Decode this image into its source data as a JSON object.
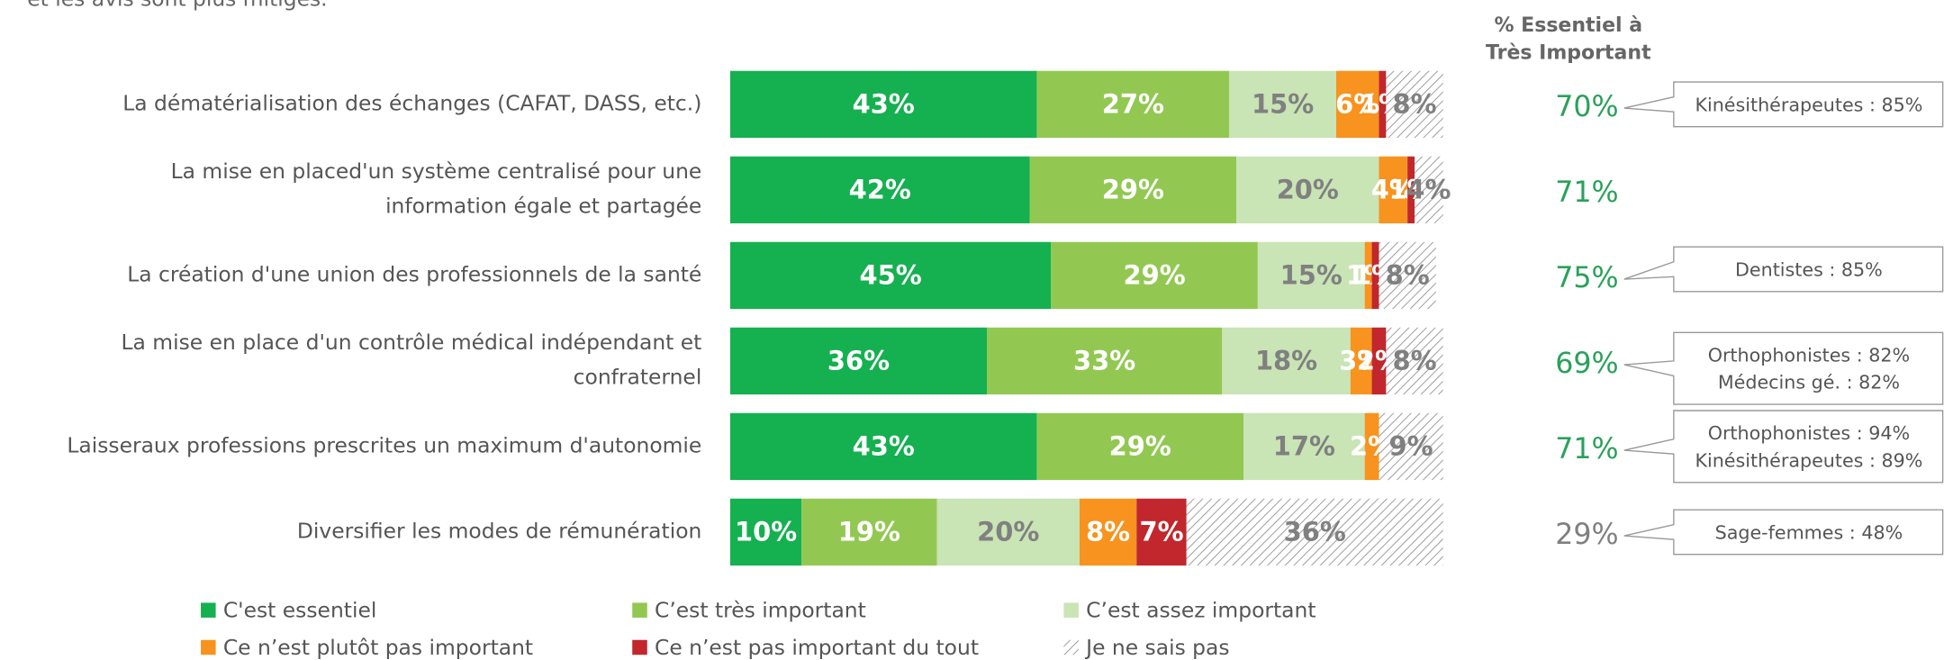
{
  "chart_data": {
    "type": "stacked-bar",
    "orientation": "horizontal",
    "subtitle": "et les avis sont plus mitigés.",
    "categories": [
      "La dématérialisation des échanges (CAFAT, DASS, etc.)",
      [
        "La mise en placed'un système centralisé pour une",
        "information égale et partagée"
      ],
      "La création d'une union des professionnels de la santé",
      [
        "La mise en place d'un contrôle médical indépendant et",
        "confraternel"
      ],
      "Laisseraux professions prescrites un maximum d'autonomie",
      "Diversifier les modes de rémunération"
    ],
    "xlim": [
      0,
      100
    ],
    "series": [
      {
        "name": "C'est essentiel",
        "color": "#15b050",
        "label_color": "#ffffff",
        "values": [
          43,
          42,
          45,
          36,
          43,
          10
        ],
        "value_labels": [
          "43%",
          "42%",
          "45%",
          "36%",
          "43%",
          "10%"
        ]
      },
      {
        "name": "C’est très important",
        "color": "#92c852",
        "label_color": "#ffffff",
        "values": [
          27,
          29,
          29,
          33,
          29,
          19
        ],
        "value_labels": [
          "27%",
          "29%",
          "29%",
          "33%",
          "29%",
          "19%"
        ]
      },
      {
        "name": "C’est assez important",
        "color": "#c9e4b5",
        "label_color": "#808080",
        "values": [
          15,
          20,
          15,
          18,
          17,
          20
        ],
        "value_labels": [
          "15%",
          "20%",
          "15%",
          "18%",
          "17%",
          "20%"
        ]
      },
      {
        "name": "Ce n’est plutôt pas important",
        "color": "#f7931e",
        "label_color": "#ffffff",
        "values": [
          6,
          4,
          1,
          3,
          2,
          8
        ],
        "value_labels": [
          "6%",
          "4%",
          "1%",
          "3%",
          "2%",
          "8%"
        ]
      },
      {
        "name": "Ce n’est pas important du tout",
        "color": "#c1272d",
        "label_color": "#ffffff",
        "values": [
          1,
          1,
          1,
          2,
          null,
          7
        ],
        "value_labels": [
          "1%",
          "1%",
          "1%",
          "2%",
          null,
          "7%"
        ]
      },
      {
        "name": "Je ne sais pas",
        "color": "hatch",
        "label_color": "#808080",
        "values": [
          8,
          4,
          8,
          8,
          9,
          36
        ],
        "value_labels": [
          "8%",
          "4%",
          "8%",
          "8%",
          "9%",
          "36%"
        ]
      }
    ],
    "summary": {
      "title": [
        "% Essentiel à",
        "Très Important"
      ],
      "values": [
        70,
        71,
        75,
        69,
        71,
        29
      ],
      "value_labels": [
        "70%",
        "71%",
        "75%",
        "69%",
        "71%",
        "29%"
      ],
      "colors": [
        "#2aa15a",
        "#2aa15a",
        "#2aa15a",
        "#2aa15a",
        "#2aa15a",
        "#808080"
      ]
    },
    "callouts": [
      [
        "Kinésithérapeutes : 85%"
      ],
      null,
      [
        "Dentistes : 85%"
      ],
      [
        "Orthophonistes : 82%",
        "Médecins gé. : 82%"
      ],
      [
        "Orthophonistes : 94%",
        "Kinésithérapeutes : 89%"
      ],
      [
        "Sage-femmes : 48%"
      ]
    ]
  }
}
